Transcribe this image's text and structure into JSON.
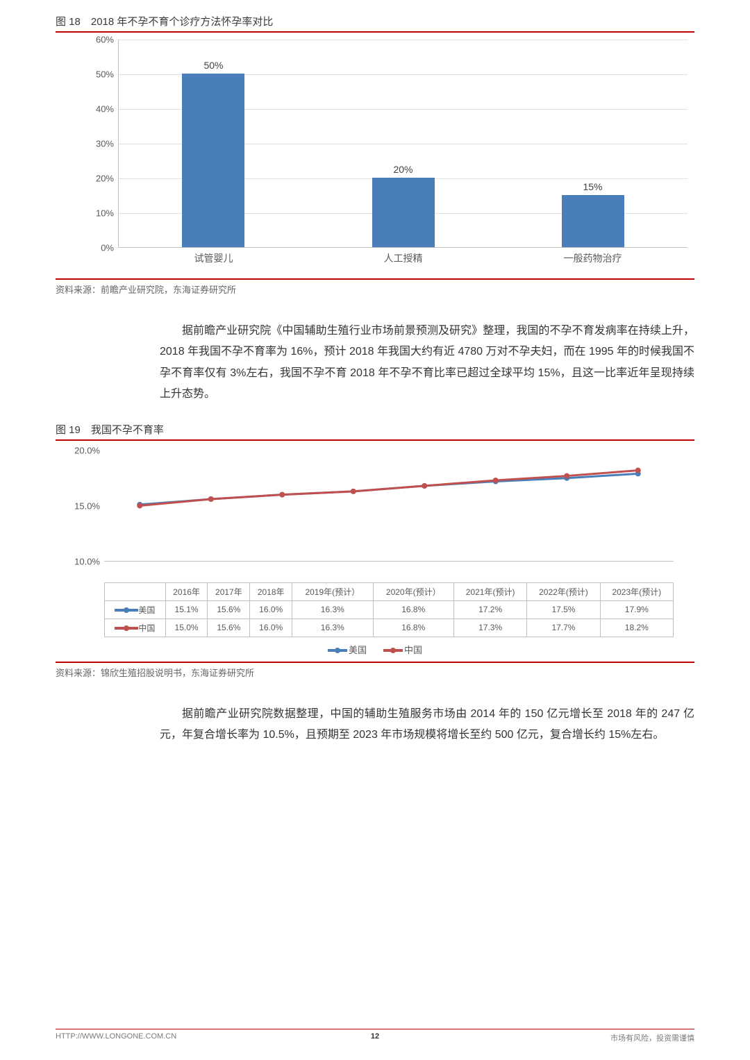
{
  "fig18": {
    "title": "图 18　2018 年不孕不育个诊疗方法怀孕率对比",
    "type": "bar",
    "ymax": 60,
    "ytick_step": 10,
    "yticks": [
      "0%",
      "10%",
      "20%",
      "30%",
      "40%",
      "50%",
      "60%"
    ],
    "categories": [
      "试管婴儿",
      "人工授精",
      "一般药物治疗"
    ],
    "values": [
      50,
      20,
      15
    ],
    "value_labels": [
      "50%",
      "20%",
      "15%"
    ],
    "bar_color": "#4a7ebb",
    "grid_color": "#e0e0e0",
    "axis_color": "#bfbfbf",
    "source": "资料来源：前瞻产业研究院，东海证券研究所"
  },
  "para1": "据前瞻产业研究院《中国辅助生殖行业市场前景预测及研究》整理，我国的不孕不育发病率在持续上升，2018 年我国不孕不育率为 16%，预计 2018 年我国大约有近 4780 万对不孕夫妇，而在 1995 年的时候我国不孕不育率仅有 3%左右，我国不孕不育 2018 年不孕不育比率已超过全球平均 15%，且这一比率近年呈现持续上升态势。",
  "fig19": {
    "title": "图 19　我国不孕不育率",
    "type": "line",
    "ymin": 10.0,
    "ymax": 20.0,
    "yticks": [
      "10.0%",
      "15.0%",
      "20.0%"
    ],
    "ytick_vals": [
      10.0,
      15.0,
      20.0
    ],
    "categories": [
      "2016年",
      "2017年",
      "2018年",
      "2019年(预计）",
      "2020年(预计）",
      "2021年(预计)",
      "2022年(预计)",
      "2023年(预计)"
    ],
    "series": [
      {
        "name": "美国",
        "color": "#4a7ebb",
        "values": [
          15.1,
          15.6,
          16.0,
          16.3,
          16.8,
          17.2,
          17.5,
          17.9
        ],
        "value_labels": [
          "15.1%",
          "15.6%",
          "16.0%",
          "16.3%",
          "16.8%",
          "17.2%",
          "17.5%",
          "17.9%"
        ]
      },
      {
        "name": "中国",
        "color": "#c0504d",
        "values": [
          15.0,
          15.6,
          16.0,
          16.3,
          16.8,
          17.3,
          17.7,
          18.2
        ],
        "value_labels": [
          "15.0%",
          "15.6%",
          "16.0%",
          "16.3%",
          "16.8%",
          "17.3%",
          "17.7%",
          "18.2%"
        ]
      }
    ],
    "line_width": 3,
    "marker_radius": 4,
    "source": "资料来源：锦欣生殖招股说明书，东海证券研究所"
  },
  "para2": "据前瞻产业研究院数据整理，中国的辅助生殖服务市场由 2014 年的 150 亿元增长至 2018 年的 247 亿元，年复合增长率为 10.5%，且预期至 2023 年市场规模将增长至约 500 亿元，复合增长约 15%左右。",
  "footer": {
    "left": "HTTP://WWW.LONGONE.COM.CN",
    "page": "12",
    "right": "市场有风险，投资需谨慎"
  }
}
